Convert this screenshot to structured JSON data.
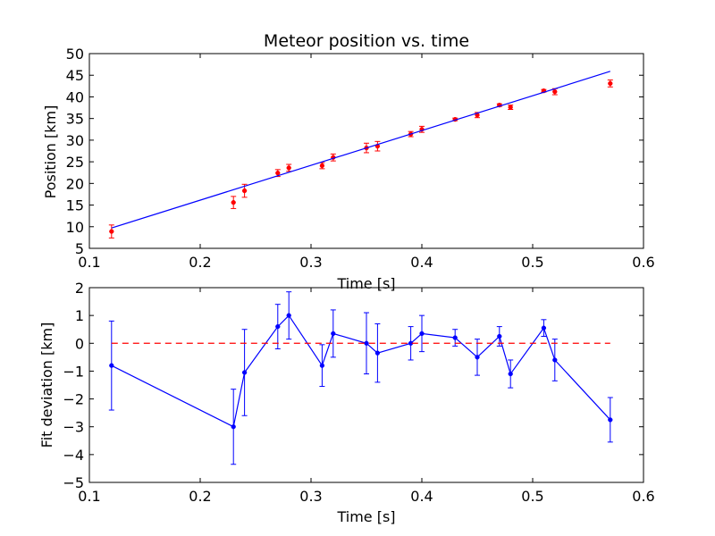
{
  "chart_data": [
    {
      "type": "scatter",
      "title": "Meteor position vs. time",
      "xlabel": "Time [s]",
      "ylabel": "Position [km]",
      "xlim": [
        0.1,
        0.6
      ],
      "ylim": [
        5,
        50
      ],
      "xticks": [
        "0.1",
        "0.2",
        "0.3",
        "0.4",
        "0.5",
        "0.6"
      ],
      "yticks": [
        "5",
        "10",
        "15",
        "20",
        "25",
        "30",
        "35",
        "40",
        "45",
        "50"
      ],
      "grid": false,
      "series": [
        {
          "kind": "errorbar-points",
          "color": "#ff0000",
          "x": [
            0.12,
            0.23,
            0.24,
            0.27,
            0.28,
            0.31,
            0.32,
            0.35,
            0.36,
            0.39,
            0.4,
            0.43,
            0.45,
            0.47,
            0.48,
            0.51,
            0.52,
            0.57
          ],
          "y": [
            8.9,
            15.6,
            18.3,
            22.4,
            23.6,
            24.1,
            26.0,
            28.2,
            28.6,
            31.4,
            32.5,
            34.8,
            35.8,
            38.1,
            37.6,
            41.4,
            41.2,
            43.1
          ],
          "yerr": [
            1.5,
            1.4,
            1.5,
            0.8,
            0.8,
            0.7,
            0.8,
            1.1,
            1.1,
            0.6,
            0.7,
            0.3,
            0.6,
            0.3,
            0.5,
            0.3,
            0.7,
            0.8
          ]
        },
        {
          "kind": "fit-line",
          "color": "#0000ff",
          "x": [
            0.12,
            0.57
          ],
          "y": [
            9.7,
            45.9
          ]
        }
      ]
    },
    {
      "type": "line",
      "title": "",
      "xlabel": "Time [s]",
      "ylabel": "Fit deviation [km]",
      "xlim": [
        0.1,
        0.6
      ],
      "ylim": [
        -5,
        2
      ],
      "xticks": [
        "0.1",
        "0.2",
        "0.3",
        "0.4",
        "0.5",
        "0.6"
      ],
      "yticks": [
        "2",
        "1",
        "0",
        "−1",
        "−2",
        "−3",
        "−4",
        "−5"
      ],
      "grid": false,
      "series": [
        {
          "kind": "errorbar-line",
          "color": "#0000ff",
          "x": [
            0.12,
            0.23,
            0.24,
            0.27,
            0.28,
            0.31,
            0.32,
            0.35,
            0.36,
            0.39,
            0.4,
            0.43,
            0.45,
            0.47,
            0.48,
            0.51,
            0.52,
            0.57
          ],
          "y": [
            -0.8,
            -3.0,
            -1.05,
            0.6,
            1.0,
            -0.8,
            0.35,
            0.0,
            -0.35,
            0.0,
            0.35,
            0.2,
            -0.5,
            0.25,
            -1.1,
            0.55,
            -0.6,
            -2.75
          ],
          "yerr": [
            1.6,
            1.35,
            1.55,
            0.8,
            0.85,
            0.75,
            0.85,
            1.1,
            1.05,
            0.6,
            0.65,
            0.3,
            0.65,
            0.35,
            0.5,
            0.3,
            0.75,
            0.8
          ]
        },
        {
          "kind": "zero-reference",
          "color": "#ff0000",
          "style": "dashed",
          "x": [
            0.12,
            0.57
          ],
          "y": [
            0,
            0
          ]
        }
      ]
    }
  ]
}
